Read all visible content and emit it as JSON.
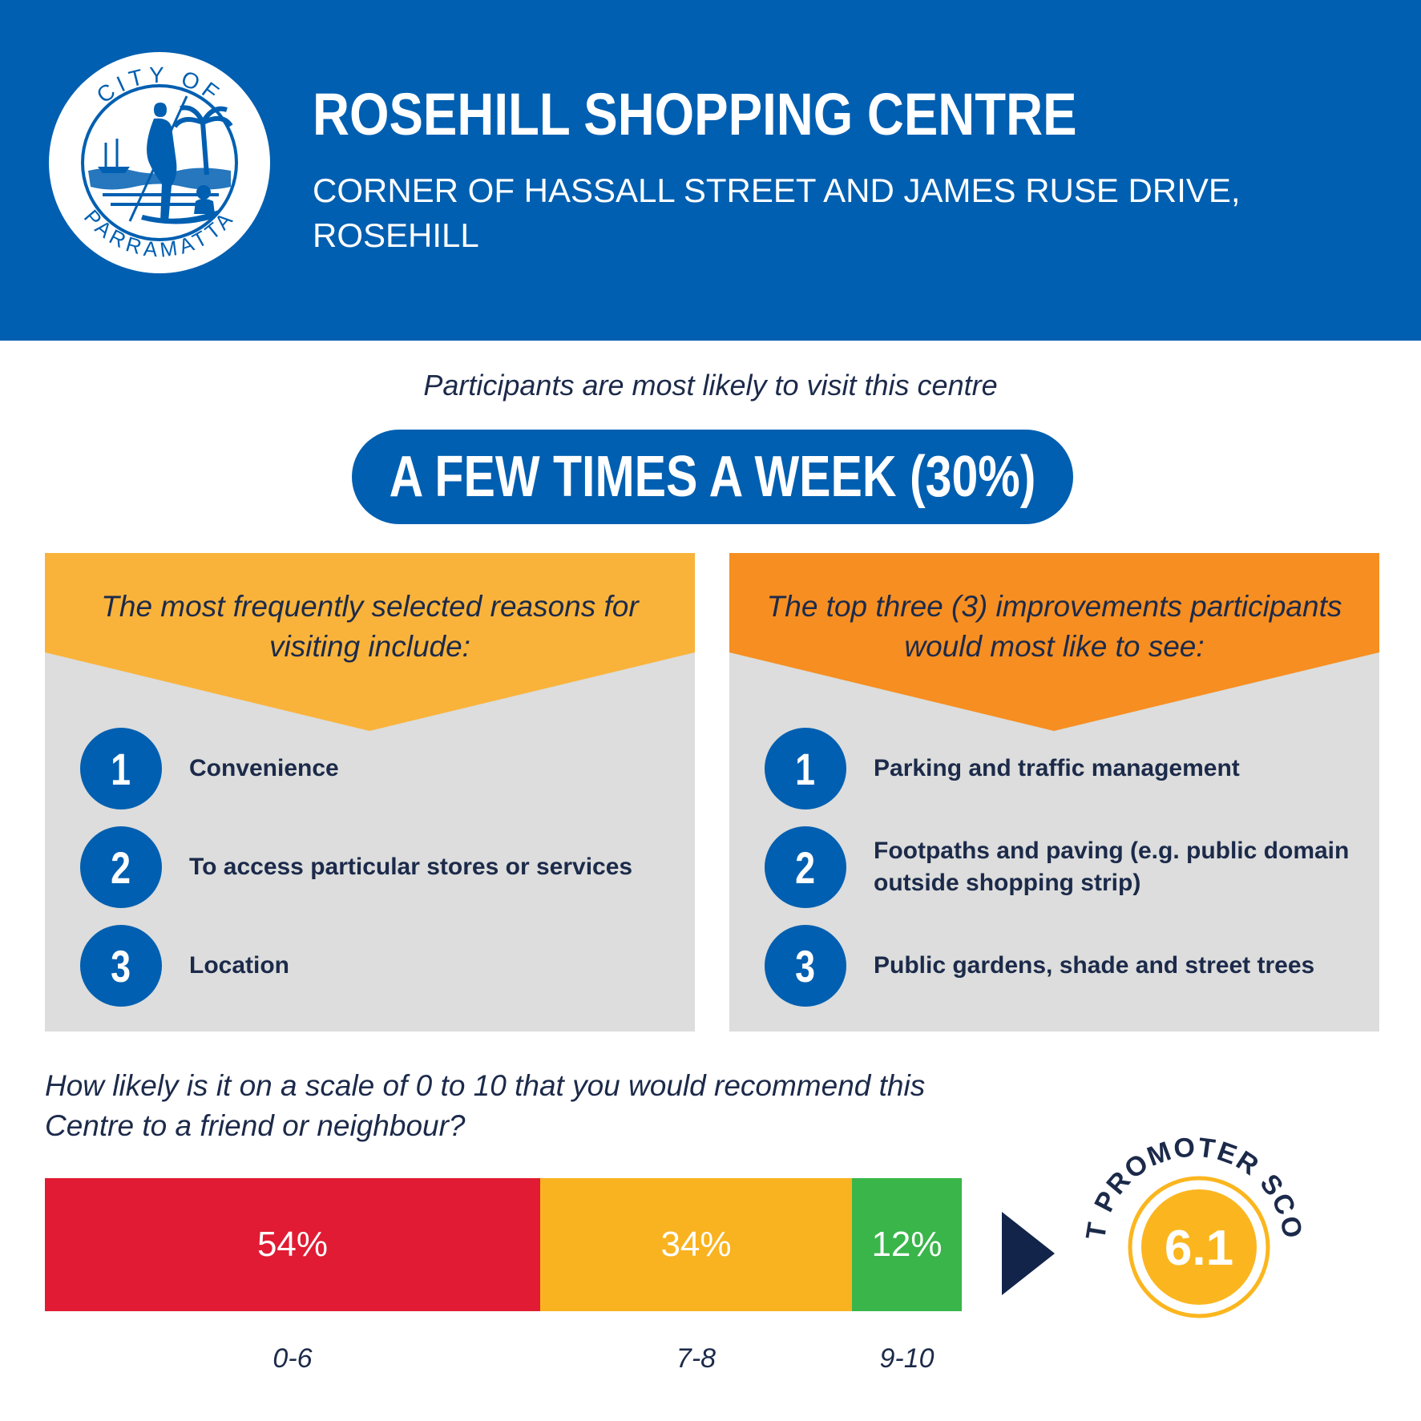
{
  "header": {
    "logo_text_top": "CITY OF",
    "logo_text_bottom": "PARRAMATTA",
    "title": "ROSEHILL SHOPPING CENTRE",
    "address": "CORNER OF HASSALL STREET AND JAMES RUSE DRIVE, ROSEHILL"
  },
  "visit": {
    "intro": "Participants are most likely to visit this centre",
    "frequency": "A FEW TIMES A WEEK (30%)"
  },
  "reasons": {
    "heading": "The most frequently selected reasons for visiting include:",
    "items": [
      {
        "number": "1",
        "label": "Convenience"
      },
      {
        "number": "2",
        "label": "To access particular stores or services"
      },
      {
        "number": "3",
        "label": "Location"
      }
    ]
  },
  "improvements": {
    "heading": "The top three (3) improvements participants would most like to see:",
    "items": [
      {
        "number": "1",
        "label": "Parking and traffic management"
      },
      {
        "number": "2",
        "label": "Footpaths and paving (e.g. public domain outside shopping strip)"
      },
      {
        "number": "3",
        "label": "Public gardens, shade and street trees"
      }
    ]
  },
  "recommend": {
    "question": "How likely is it on a scale of 0 to 10 that you would recommend this Centre to a friend or neighbour?",
    "segments": [
      {
        "range": "0-6",
        "value": 54,
        "label": "54%",
        "color": "#e01b33"
      },
      {
        "range": "7-8",
        "value": 34,
        "label": "34%",
        "color": "#f9b320"
      },
      {
        "range": "9-10",
        "value": 12,
        "label": "12%",
        "color": "#39b54a"
      }
    ],
    "nps_label": "NET PROMOTER SCORE",
    "nps_value": "6.1"
  },
  "colors": {
    "brand_blue": "#005fb1",
    "panel_grey": "#dcdddc",
    "reasons_banner": "#f9b33b",
    "improvements_banner": "#f68e21",
    "nps_fill": "#fbb61f",
    "arrow_navy": "#12244a"
  }
}
